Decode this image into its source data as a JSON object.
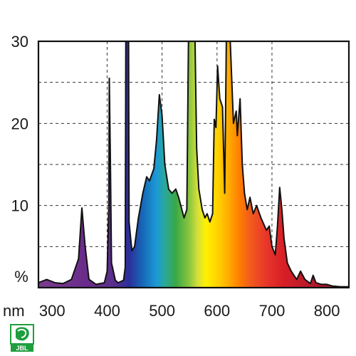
{
  "chart_data": {
    "type": "area",
    "title": "",
    "xlabel": "nm",
    "ylabel": "%",
    "xlim": [
      275,
      840
    ],
    "ylim": [
      0,
      30
    ],
    "grid": true,
    "x_ticks": [
      300,
      400,
      500,
      600,
      700,
      800
    ],
    "y_ticks": [
      10,
      20,
      30
    ],
    "fill": "visible-spectrum gradient by wavelength",
    "series": [
      {
        "values": [
          [
            275,
            0.6
          ],
          [
            290,
            1.0
          ],
          [
            305,
            0.6
          ],
          [
            320,
            0.5
          ],
          [
            335,
            1.0
          ],
          [
            348,
            3.5
          ],
          [
            354,
            9.7
          ],
          [
            360,
            5.0
          ],
          [
            367,
            1.0
          ],
          [
            380,
            0.4
          ],
          [
            395,
            0.6
          ],
          [
            400,
            2.0
          ],
          [
            403,
            10.0
          ],
          [
            404,
            25.5
          ],
          [
            406,
            15.0
          ],
          [
            408,
            3.0
          ],
          [
            415,
            0.9
          ],
          [
            420,
            0.6
          ],
          [
            430,
            0.9
          ],
          [
            433,
            2.5
          ],
          [
            434,
            38.0
          ],
          [
            439,
            38.0
          ],
          [
            440,
            8.0
          ],
          [
            445,
            4.5
          ],
          [
            450,
            5.0
          ],
          [
            457,
            8.5
          ],
          [
            465,
            11.5
          ],
          [
            472,
            13.5
          ],
          [
            477,
            13.0
          ],
          [
            485,
            14.5
          ],
          [
            490,
            18.0
          ],
          [
            495,
            23.5
          ],
          [
            500,
            21.0
          ],
          [
            505,
            15.0
          ],
          [
            512,
            12.0
          ],
          [
            518,
            11.5
          ],
          [
            525,
            12.0
          ],
          [
            530,
            11.0
          ],
          [
            540,
            8.5
          ],
          [
            545,
            9.5
          ],
          [
            548,
            38.0
          ],
          [
            560,
            38.0
          ],
          [
            563,
            17.0
          ],
          [
            567,
            12.0
          ],
          [
            573,
            9.5
          ],
          [
            578,
            8.5
          ],
          [
            582,
            9.0
          ],
          [
            587,
            8.0
          ],
          [
            592,
            9.0
          ],
          [
            595,
            20.5
          ],
          [
            598,
            19.5
          ],
          [
            601,
            27.0
          ],
          [
            605,
            23.0
          ],
          [
            610,
            22.0
          ],
          [
            614,
            11.5
          ],
          [
            617,
            38.0
          ],
          [
            624,
            38.0
          ],
          [
            630,
            20.0
          ],
          [
            635,
            21.5
          ],
          [
            637,
            18.5
          ],
          [
            642,
            23.0
          ],
          [
            646,
            15.0
          ],
          [
            650,
            11.5
          ],
          [
            655,
            9.5
          ],
          [
            660,
            11.0
          ],
          [
            666,
            9.0
          ],
          [
            672,
            10.0
          ],
          [
            680,
            8.5
          ],
          [
            690,
            7.0
          ],
          [
            695,
            7.5
          ],
          [
            700,
            5.0
          ],
          [
            706,
            4.0
          ],
          [
            710,
            7.5
          ],
          [
            714,
            12.2
          ],
          [
            718,
            9.5
          ],
          [
            722,
            6.0
          ],
          [
            728,
            3.0
          ],
          [
            735,
            2.0
          ],
          [
            745,
            1.0
          ],
          [
            752,
            2.0
          ],
          [
            760,
            1.0
          ],
          [
            770,
            0.5
          ],
          [
            775,
            1.5
          ],
          [
            780,
            0.6
          ],
          [
            790,
            0.4
          ],
          [
            800,
            0.4
          ],
          [
            810,
            0.2
          ],
          [
            825,
            0.1
          ],
          [
            840,
            0.1
          ]
        ]
      }
    ]
  },
  "logo": {
    "text": "JBL",
    "color": "#1e9e3e"
  }
}
